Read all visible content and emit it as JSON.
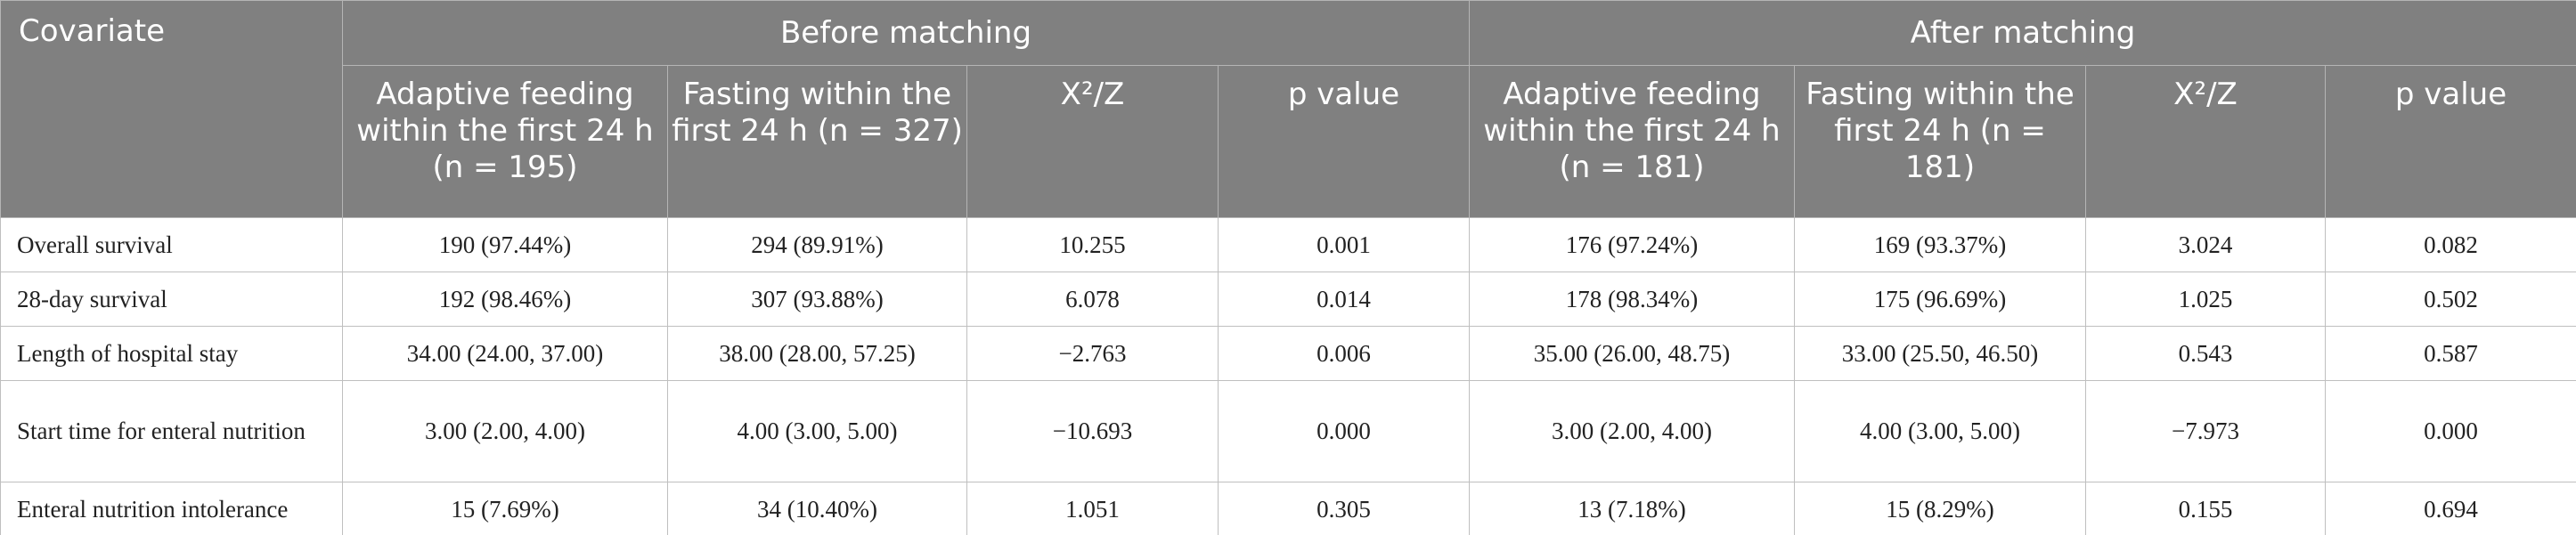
{
  "table": {
    "corner": "Covariate",
    "groups": [
      "Before matching",
      "After matching"
    ],
    "columns": [
      "Adaptive feeding within the first 24 h (n = 195)",
      "Fasting within the first 24 h (n = 327)",
      "X²/Z",
      "p value",
      "Adaptive feeding within the first 24 h (n = 181)",
      "Fasting within the first 24 h (n = 181)",
      "X²/Z",
      "p value"
    ],
    "rows": [
      [
        "Overall survival",
        "190 (97.44%)",
        "294 (89.91%)",
        "10.255",
        "0.001",
        "176 (97.24%)",
        "169 (93.37%)",
        "3.024",
        "0.082"
      ],
      [
        "28-day survival",
        "192 (98.46%)",
        "307 (93.88%)",
        "6.078",
        "0.014",
        "178 (98.34%)",
        "175 (96.69%)",
        "1.025",
        "0.502"
      ],
      [
        "Length of hospital stay",
        "34.00 (24.00, 37.00)",
        "38.00 (28.00, 57.25)",
        "−2.763",
        "0.006",
        "35.00 (26.00, 48.75)",
        "33.00 (25.50, 46.50)",
        "0.543",
        "0.587"
      ],
      [
        "Start time for enteral nutrition",
        "3.00 (2.00, 4.00)",
        "4.00 (3.00, 5.00)",
        "−10.693",
        "0.000",
        "3.00 (2.00, 4.00)",
        "4.00 (3.00, 5.00)",
        "−7.973",
        "0.000"
      ],
      [
        "Enteral nutrition intolerance",
        "15 (7.69%)",
        "34 (10.40%)",
        "1.051",
        "0.305",
        "13 (7.18%)",
        "15 (8.29%)",
        "0.155",
        "0.694"
      ]
    ]
  }
}
